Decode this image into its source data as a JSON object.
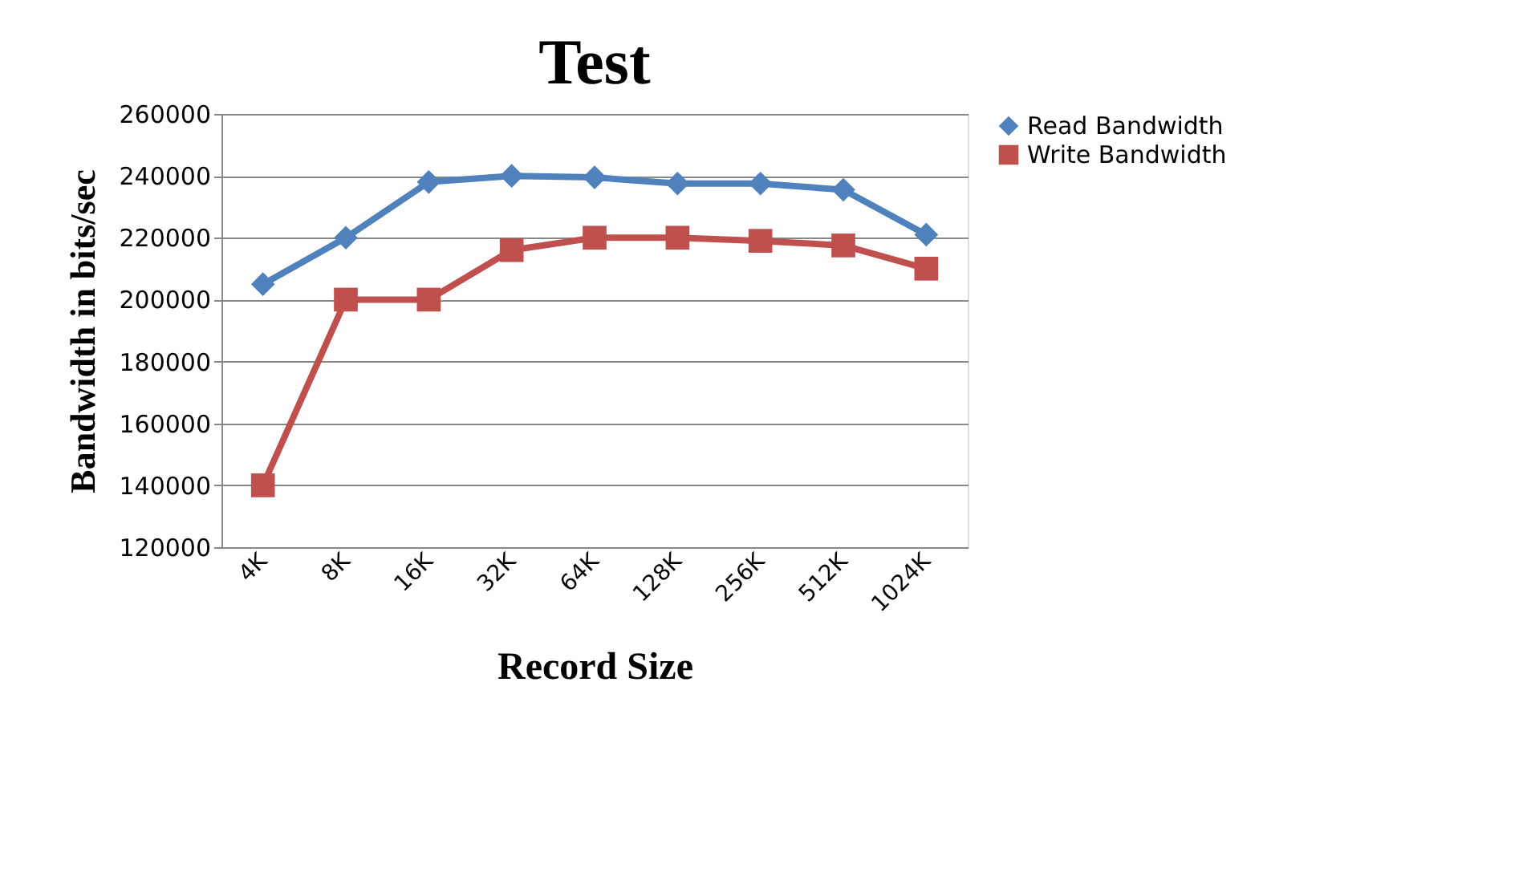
{
  "chart_data": {
    "type": "line",
    "title": "Test",
    "xlabel": "Record Size",
    "ylabel": "Bandwidth in bits/sec",
    "categories": [
      "4K",
      "8K",
      "16K",
      "32K",
      "64K",
      "128K",
      "256K",
      "512K",
      "1024K"
    ],
    "series": [
      {
        "name": "Read Bandwidth",
        "color": "#4f81bd",
        "marker": "diamond",
        "values": [
          205000,
          220000,
          238000,
          240000,
          239500,
          237500,
          237500,
          235500,
          221000
        ]
      },
      {
        "name": "Write Bandwidth",
        "color": "#c0504d",
        "marker": "square",
        "values": [
          140000,
          200000,
          200000,
          216000,
          220000,
          220000,
          219000,
          217500,
          210000
        ]
      }
    ],
    "ylim": [
      120000,
      260000
    ],
    "yticks": [
      120000,
      140000,
      160000,
      180000,
      200000,
      220000,
      240000,
      260000
    ],
    "grid": "y",
    "legend": "right",
    "line_style": "solid"
  }
}
